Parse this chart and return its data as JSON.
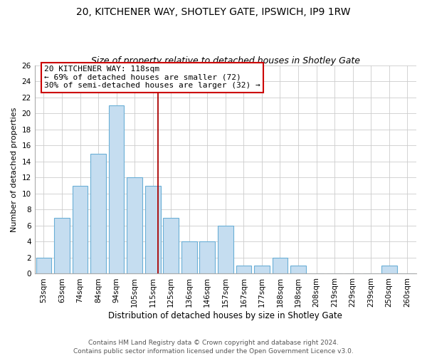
{
  "title1": "20, KITCHENER WAY, SHOTLEY GATE, IPSWICH, IP9 1RW",
  "title2": "Size of property relative to detached houses in Shotley Gate",
  "xlabel": "Distribution of detached houses by size in Shotley Gate",
  "ylabel": "Number of detached properties",
  "bar_labels": [
    "53sqm",
    "63sqm",
    "74sqm",
    "84sqm",
    "94sqm",
    "105sqm",
    "115sqm",
    "125sqm",
    "136sqm",
    "146sqm",
    "157sqm",
    "167sqm",
    "177sqm",
    "188sqm",
    "198sqm",
    "208sqm",
    "219sqm",
    "229sqm",
    "239sqm",
    "250sqm",
    "260sqm"
  ],
  "bar_heights": [
    2,
    7,
    11,
    15,
    21,
    12,
    11,
    7,
    4,
    4,
    6,
    1,
    1,
    2,
    1,
    0,
    0,
    0,
    0,
    1,
    0
  ],
  "bar_color": "#c5ddf0",
  "bar_edge_color": "#6aafd6",
  "grid_color": "#cccccc",
  "vline_color": "#aa0000",
  "annotation_title": "20 KITCHENER WAY: 118sqm",
  "annotation_line1": "← 69% of detached houses are smaller (72)",
  "annotation_line2": "30% of semi-detached houses are larger (32) →",
  "annotation_box_color": "#ffffff",
  "annotation_box_edge": "#cc0000",
  "ylim": [
    0,
    26
  ],
  "yticks": [
    0,
    2,
    4,
    6,
    8,
    10,
    12,
    14,
    16,
    18,
    20,
    22,
    24,
    26
  ],
  "footer1": "Contains HM Land Registry data © Crown copyright and database right 2024.",
  "footer2": "Contains public sector information licensed under the Open Government Licence v3.0.",
  "background_color": "#ffffff",
  "title1_fontsize": 10,
  "title2_fontsize": 9,
  "xlabel_fontsize": 8.5,
  "ylabel_fontsize": 8,
  "footer_fontsize": 6.5,
  "tick_fontsize": 7.5,
  "annotation_fontsize": 8,
  "vline_pos": 6.3
}
